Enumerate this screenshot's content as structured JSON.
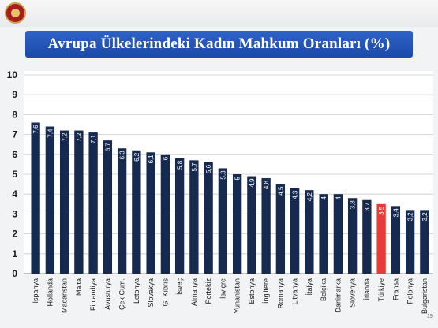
{
  "header": {
    "title": "Avrupa Ülkelerindeki Kadın Mahkum Oranları (%)"
  },
  "page_number": "19",
  "colors": {
    "bar": "#16294f",
    "highlight_bar": "#e83a36",
    "title_bg": "#1f4fae",
    "grid": "#c9cbce"
  },
  "chart_data": {
    "type": "bar",
    "title": "Avrupa Ülkelerindeki Kadın Mahkum Oranları (%)",
    "xlabel": "",
    "ylabel": "",
    "ylim": [
      0,
      10
    ],
    "yticks": [
      0,
      1,
      2,
      3,
      4,
      5,
      6,
      7,
      8,
      9,
      10
    ],
    "grid": true,
    "highlight_category": "Türkiye",
    "categories": [
      "İspanya",
      "Hollanda",
      "Macaristan",
      "Malta",
      "Finlandiya",
      "Avusturya",
      "Çek Cum.",
      "Letonya",
      "Slovakya",
      "G. Kıbrıs",
      "İsveç",
      "Almanya",
      "Portekiz",
      "İsviçre",
      "Yunanistan",
      "Estonya",
      "İngiltere",
      "Romanya",
      "Litvanya",
      "İtalya",
      "Belçika",
      "Danimarka",
      "Slovenya",
      "İrlanda",
      "Türkiye",
      "Fransa",
      "Polonya",
      "Bulgaristan"
    ],
    "values": [
      7.6,
      7.4,
      7.2,
      7.2,
      7.1,
      6.7,
      6.3,
      6.2,
      6.1,
      6.0,
      5.8,
      5.7,
      5.6,
      5.3,
      5.0,
      4.9,
      4.8,
      4.5,
      4.3,
      4.2,
      4.0,
      4.0,
      3.8,
      3.7,
      3.5,
      3.4,
      3.2,
      3.2
    ],
    "value_labels": [
      "7,6",
      "7,4",
      "7,2",
      "7,2",
      "7,1",
      "6,7",
      "6,3",
      "6,2",
      "6,1",
      "6",
      "5,8",
      "5,7",
      "5,6",
      "5,3",
      "5",
      "4,9",
      "4,8",
      "4,5",
      "4,3",
      "4,2",
      "4",
      "4",
      "3,8",
      "3,7",
      "3,5",
      "3,4",
      "3,2",
      "3,2"
    ]
  }
}
